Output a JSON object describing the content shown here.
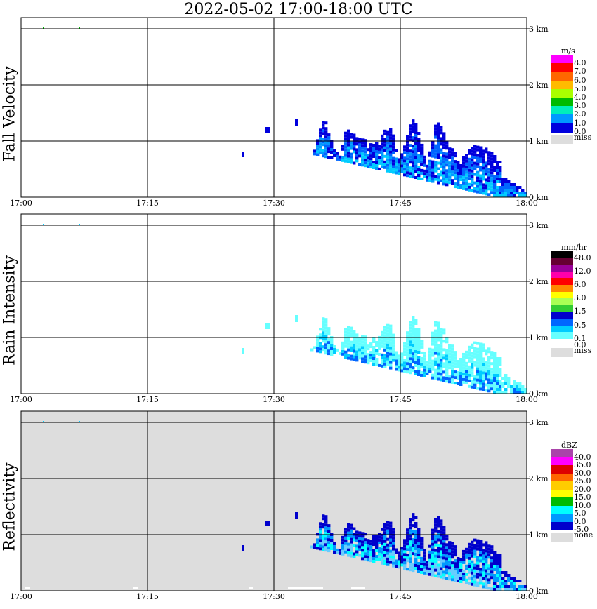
{
  "title": "2022-05-02   17:00-18:00 UTC",
  "chart_data": [
    {
      "type": "heatmap",
      "panel": "fall-velocity",
      "ylabel": "Fall Velocity",
      "x_ticks": [
        "17:00",
        "17:15",
        "17:30",
        "17:45",
        "18:00"
      ],
      "y_ticks": [
        "0 km",
        "1 km",
        "2 km",
        "3 km"
      ],
      "xlim": [
        "17:00",
        "18:00"
      ],
      "ylim_km": [
        0,
        3.2
      ],
      "grid": true,
      "background": "#ffffff",
      "colorbar": {
        "unit": "m/s",
        "levels": [
          {
            "label": "8.0",
            "color": "#ff00ff"
          },
          {
            "label": "7.0",
            "color": "#ff0000"
          },
          {
            "label": "6.0",
            "color": "#ff6600"
          },
          {
            "label": "5.0",
            "color": "#ffbb00"
          },
          {
            "label": "4.0",
            "color": "#aaff00"
          },
          {
            "label": "3.0",
            "color": "#00bb00"
          },
          {
            "label": "2.0",
            "color": "#00eebb"
          },
          {
            "label": "1.0",
            "color": "#0099ff"
          },
          {
            "label": "0.0",
            "color": "#0000dd"
          }
        ],
        "missing": {
          "label": "miss",
          "color": "#dddddd"
        }
      }
    },
    {
      "type": "heatmap",
      "panel": "rain-intensity",
      "ylabel": "Rain Intensity",
      "x_ticks": [
        "17:00",
        "17:15",
        "17:30",
        "17:45",
        "18:00"
      ],
      "y_ticks": [
        "0 km",
        "1 km",
        "2 km",
        "3 km"
      ],
      "xlim": [
        "17:00",
        "18:00"
      ],
      "ylim_km": [
        0,
        3.2
      ],
      "grid": true,
      "background": "#ffffff",
      "colorbar": {
        "unit": "mm/hr",
        "levels": [
          {
            "label": "48.0",
            "color": "#000000"
          },
          {
            "label": "",
            "color": "#660033"
          },
          {
            "label": "12.0",
            "color": "#990099"
          },
          {
            "label": "",
            "color": "#ff00aa"
          },
          {
            "label": "6.0",
            "color": "#ff0000"
          },
          {
            "label": "",
            "color": "#ff8800"
          },
          {
            "label": "3.0",
            "color": "#ffff00"
          },
          {
            "label": "",
            "color": "#aaff55"
          },
          {
            "label": "1.5",
            "color": "#33cc33"
          },
          {
            "label": "",
            "color": "#0000cc"
          },
          {
            "label": "0.5",
            "color": "#0066ff"
          },
          {
            "label": "",
            "color": "#00ccff"
          },
          {
            "label": "0.1",
            "color": "#66ffff"
          },
          {
            "label": "0.0",
            "color": "#ffffff"
          }
        ],
        "missing": {
          "label": "miss",
          "color": "#dddddd"
        }
      }
    },
    {
      "type": "heatmap",
      "panel": "reflectivity",
      "ylabel": "Reflectivity",
      "x_ticks": [
        "17:00",
        "17:15",
        "17:30",
        "17:45",
        "18:00"
      ],
      "y_ticks": [
        "0 km",
        "1 km",
        "2 km",
        "3 km"
      ],
      "xlim": [
        "17:00",
        "18:00"
      ],
      "ylim_km": [
        0,
        3.2
      ],
      "grid": true,
      "background": "#dddddd",
      "colorbar": {
        "unit": "dBZ",
        "levels": [
          {
            "label": "40.0",
            "color": "#aa44aa"
          },
          {
            "label": "35.0",
            "color": "#ff00ff"
          },
          {
            "label": "30.0",
            "color": "#dd0000"
          },
          {
            "label": "25.0",
            "color": "#ff6600"
          },
          {
            "label": "20.0",
            "color": "#ffcc00"
          },
          {
            "label": "15.0",
            "color": "#ffff00"
          },
          {
            "label": "10.0",
            "color": "#00bb00"
          },
          {
            "label": "5.0",
            "color": "#00ffff"
          },
          {
            "label": "0.0",
            "color": "#0099ff"
          },
          {
            "label": "-5.0",
            "color": "#0000cc"
          }
        ],
        "missing": {
          "label": "none",
          "color": "#dddddd"
        }
      }
    }
  ]
}
